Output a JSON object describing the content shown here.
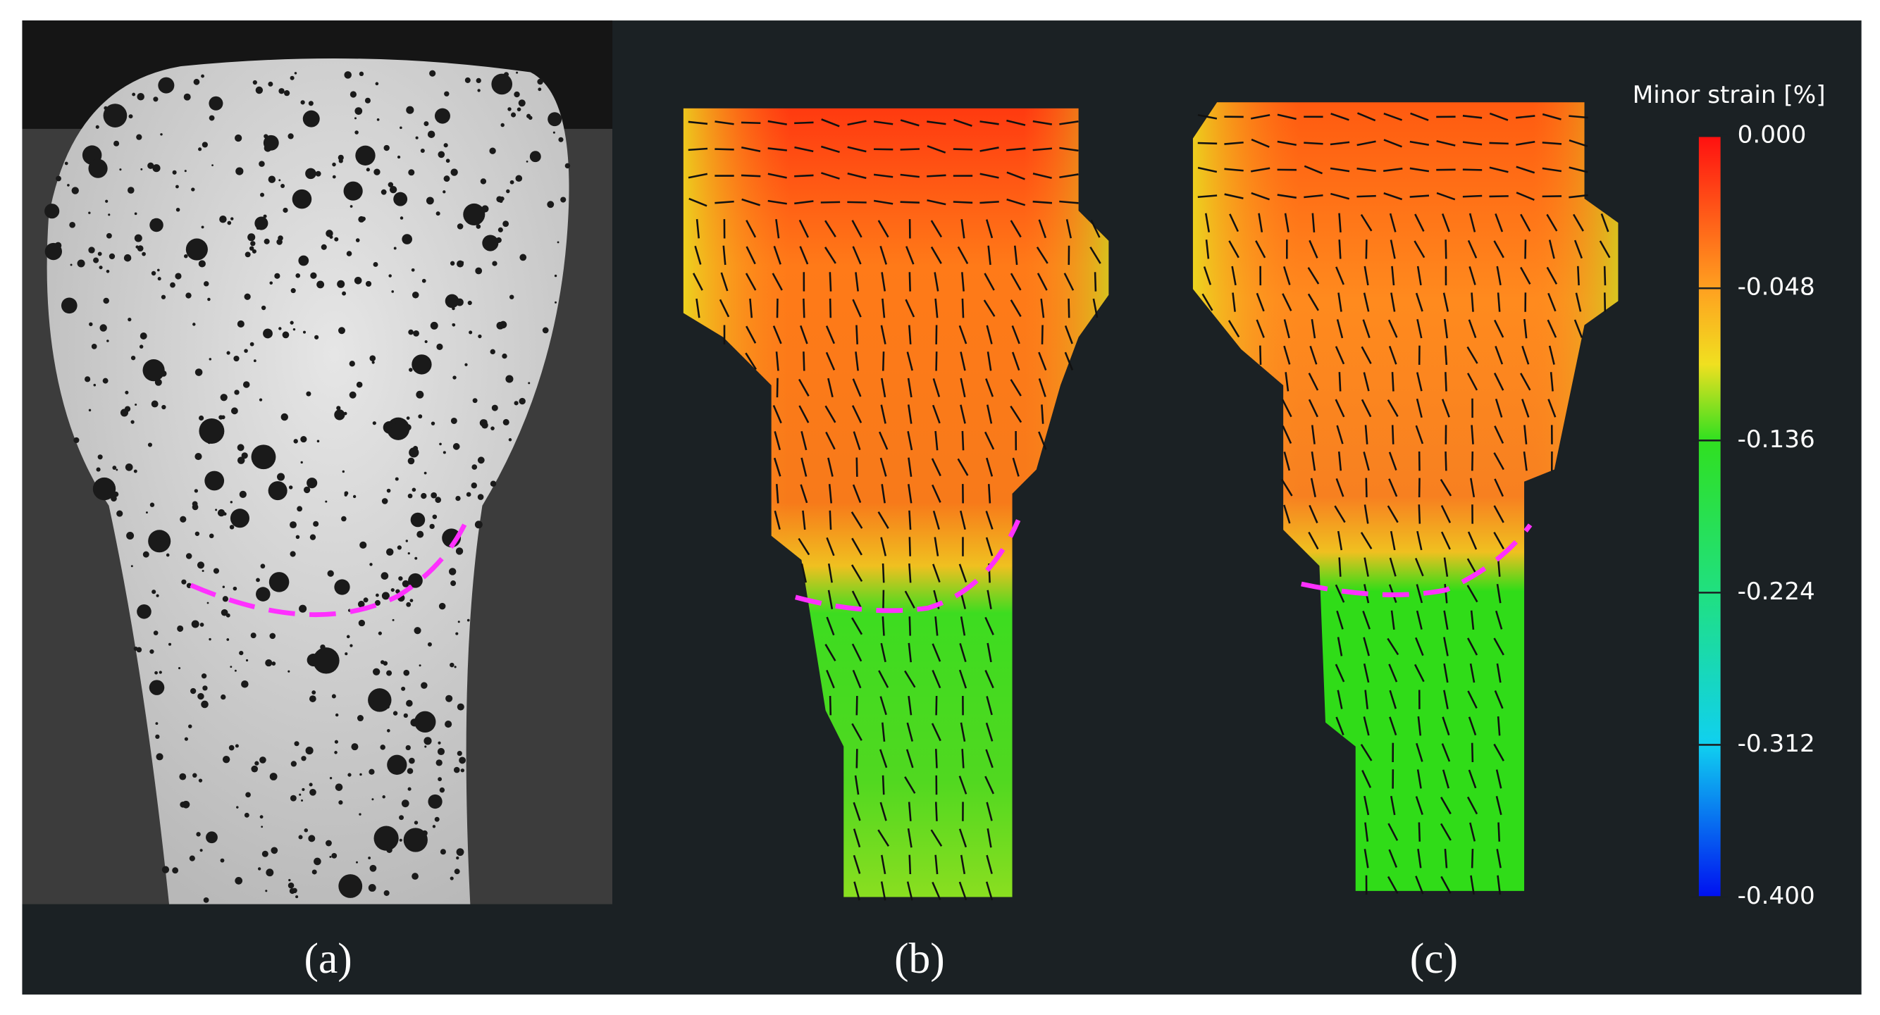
{
  "panels": [
    {
      "label": "(a)"
    },
    {
      "label": "(b)"
    },
    {
      "label": "(c)"
    }
  ],
  "colorbar": {
    "title": "Minor strain [%]",
    "tick_labels": [
      "0.000",
      "-0.048",
      "-0.136",
      "-0.224",
      "-0.312",
      "-0.400"
    ]
  }
}
